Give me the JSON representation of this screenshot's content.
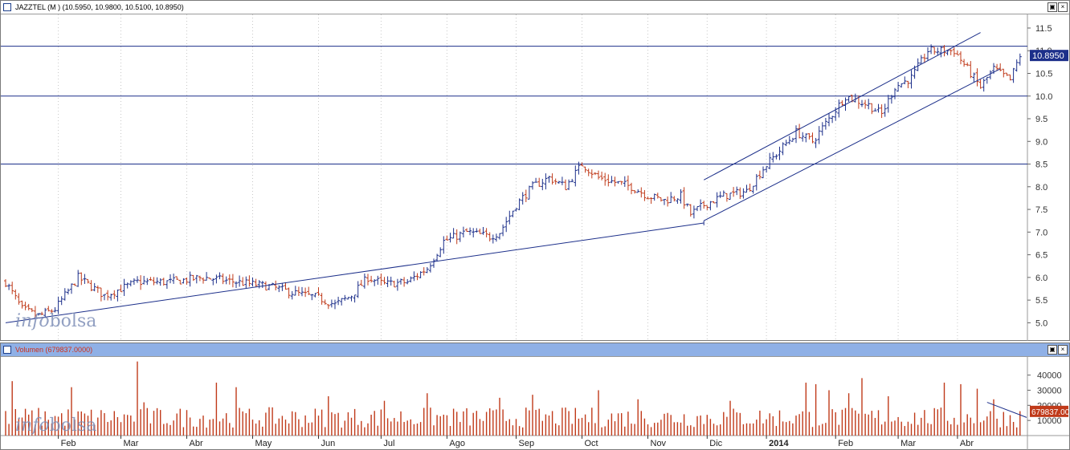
{
  "price_panel": {
    "title": "JAZZTEL (M ) (10.5950, 10.9800, 10.5100, 10.8950)",
    "last_value_label": "10.8950",
    "logo_a": "info",
    "logo_b": "bolsa"
  },
  "volume_panel": {
    "title": "Volumen (679837.0000)",
    "last_value_label": "679837.00",
    "logo_a": "info",
    "logo_b": "bolsa"
  },
  "window_buttons": {
    "maximize": "▣",
    "close": "×"
  },
  "colors": {
    "up": "#1c2f8a",
    "down": "#c03a1a",
    "line": "#1c2f8a",
    "grid": "#c8c8c8",
    "volume": "#c03a1a"
  },
  "chart_data": [
    {
      "type": "ohlc",
      "title": "JAZZTEL (M ) (10.5950, 10.9800, 10.5100, 10.8950)",
      "ylim": [
        4.6,
        11.8
      ],
      "y_ticks": [
        "5.0",
        "5.5",
        "6.0",
        "6.5",
        "7.0",
        "7.5",
        "8.0",
        "8.5",
        "9.0",
        "9.5",
        "10.0",
        "10.5",
        "11.0",
        "11.5"
      ],
      "months": [
        "Feb",
        "Mar",
        "Abr",
        "May",
        "Jun",
        "Jul",
        "Ago",
        "Sep",
        "Oct",
        "Nov",
        "Dic",
        "2014",
        "Feb",
        "Mar",
        "Abr"
      ],
      "close_path": [
        [
          0,
          5.9
        ],
        [
          5,
          5.3
        ],
        [
          10,
          5.15
        ],
        [
          15,
          5.3
        ],
        [
          22,
          6.0
        ],
        [
          30,
          5.6
        ],
        [
          40,
          5.9
        ],
        [
          50,
          5.9
        ],
        [
          60,
          6.0
        ],
        [
          70,
          5.9
        ],
        [
          80,
          5.8
        ],
        [
          88,
          5.65
        ],
        [
          95,
          5.55
        ],
        [
          100,
          5.4
        ],
        [
          105,
          5.6
        ],
        [
          110,
          6.0
        ],
        [
          115,
          5.85
        ],
        [
          122,
          5.9
        ],
        [
          128,
          6.2
        ],
        [
          133,
          6.8
        ],
        [
          140,
          7.0
        ],
        [
          147,
          6.9
        ],
        [
          150,
          7.0
        ],
        [
          155,
          7.6
        ],
        [
          160,
          8.0
        ],
        [
          165,
          8.2
        ],
        [
          170,
          8.0
        ],
        [
          175,
          8.5
        ],
        [
          180,
          8.2
        ],
        [
          185,
          8.1
        ],
        [
          190,
          8.0
        ],
        [
          195,
          7.8
        ],
        [
          200,
          7.7
        ],
        [
          205,
          7.8
        ],
        [
          208,
          7.4
        ],
        [
          212,
          7.6
        ],
        [
          218,
          7.8
        ],
        [
          225,
          7.9
        ],
        [
          230,
          8.4
        ],
        [
          235,
          8.8
        ],
        [
          240,
          9.2
        ],
        [
          245,
          9.0
        ],
        [
          250,
          9.5
        ],
        [
          255,
          10.0
        ],
        [
          262,
          9.8
        ],
        [
          266,
          9.6
        ],
        [
          270,
          10.2
        ],
        [
          275,
          10.4
        ],
        [
          280,
          11.0
        ],
        [
          285,
          11.0
        ],
        [
          288,
          11.0
        ],
        [
          292,
          10.6
        ],
        [
          296,
          10.2
        ],
        [
          300,
          10.6
        ],
        [
          305,
          10.35
        ],
        [
          308,
          10.9
        ]
      ],
      "horizontal_lines": [
        11.1,
        10.0,
        8.5
      ],
      "trend_lines": [
        {
          "from": [
            0,
            5.0
          ],
          "to": [
            212,
            7.2
          ]
        },
        {
          "from": [
            212,
            7.25
          ],
          "to": [
            302,
            10.6
          ]
        },
        {
          "from": [
            212,
            8.15
          ],
          "to": [
            296,
            11.4
          ]
        },
        {
          "from": [
            212,
            7.15
          ],
          "to": [
            212,
            7.25
          ]
        }
      ]
    },
    {
      "type": "bar",
      "title": "Volumen (679837.0000)",
      "ylim": [
        0,
        52000
      ],
      "y_ticks": [
        "10000",
        "20000",
        "30000",
        "40000"
      ],
      "baseline_volume": 15000,
      "spikes": [
        [
          2,
          36000
        ],
        [
          20,
          32000
        ],
        [
          40,
          49000
        ],
        [
          42,
          22000
        ],
        [
          64,
          35000
        ],
        [
          70,
          32000
        ],
        [
          98,
          26000
        ],
        [
          115,
          23000
        ],
        [
          128,
          28000
        ],
        [
          150,
          25000
        ],
        [
          160,
          27000
        ],
        [
          180,
          30000
        ],
        [
          192,
          24000
        ],
        [
          220,
          23000
        ],
        [
          243,
          35000
        ],
        [
          246,
          34000
        ],
        [
          250,
          30000
        ],
        [
          256,
          28000
        ],
        [
          260,
          38000
        ],
        [
          268,
          26000
        ],
        [
          285,
          35000
        ],
        [
          290,
          34000
        ],
        [
          295,
          31000
        ],
        [
          300,
          24000
        ]
      ],
      "trend_line": {
        "from": [
          298,
          22000
        ],
        "to": [
          310,
          12000
        ]
      }
    }
  ]
}
